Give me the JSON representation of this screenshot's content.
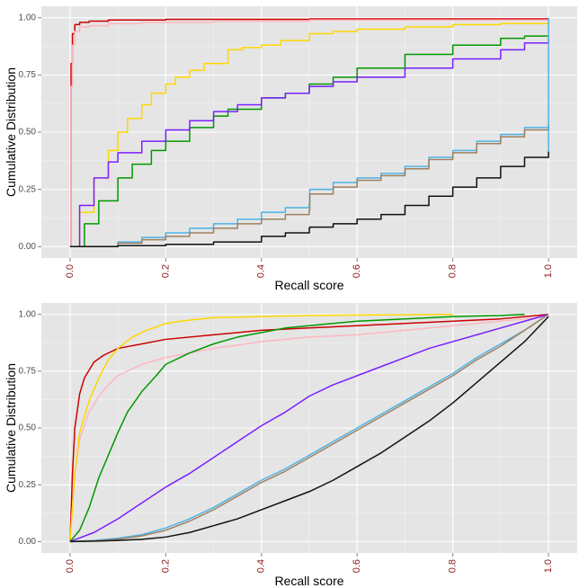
{
  "chart_data": [
    {
      "type": "line",
      "step": true,
      "xlabel": "Recall score",
      "ylabel": "Cumulative Distribution",
      "xlim": [
        -0.06,
        1.06
      ],
      "ylim": [
        -0.05,
        1.05
      ],
      "x_ticks": [
        0.0,
        0.2,
        0.4,
        0.6,
        0.8,
        1.0
      ],
      "x_tick_labels": [
        "0.0",
        "0.2",
        "0.4",
        "0.6",
        "0.8",
        "1.0"
      ],
      "y_ticks": [
        0.0,
        0.25,
        0.5,
        0.75,
        1.0
      ],
      "y_tick_labels": [
        "0.00",
        "0.25",
        "0.50",
        "0.75",
        "1.00"
      ],
      "series": [
        {
          "name": "red",
          "color": "#cc0000",
          "x": [
            0,
            0.002,
            0.005,
            0.01,
            0.02,
            0.04,
            0.08,
            0.2,
            0.5,
            1.0
          ],
          "y": [
            0,
            0.8,
            0.93,
            0.97,
            0.98,
            0.985,
            0.99,
            0.993,
            0.995,
            0.998
          ]
        },
        {
          "name": "pink",
          "color": "#ffb6c1",
          "x": [
            0,
            0.002,
            0.005,
            0.01,
            0.02,
            0.04,
            0.08,
            0.15,
            0.3,
            0.5,
            1.0
          ],
          "y": [
            0,
            0.7,
            0.88,
            0.94,
            0.96,
            0.965,
            0.975,
            0.98,
            0.985,
            0.99,
            0.995
          ]
        },
        {
          "name": "gold",
          "color": "#ffd700",
          "x": [
            0,
            0.02,
            0.05,
            0.08,
            0.1,
            0.12,
            0.15,
            0.17,
            0.2,
            0.22,
            0.25,
            0.28,
            0.33,
            0.36,
            0.4,
            0.44,
            0.5,
            0.55,
            0.6,
            0.7,
            0.8,
            0.9,
            1.0
          ],
          "y": [
            0,
            0.15,
            0.3,
            0.42,
            0.5,
            0.56,
            0.62,
            0.67,
            0.71,
            0.74,
            0.77,
            0.8,
            0.86,
            0.87,
            0.88,
            0.9,
            0.93,
            0.94,
            0.95,
            0.96,
            0.97,
            0.975,
            0.98
          ]
        },
        {
          "name": "green",
          "color": "#009900",
          "x": [
            0,
            0.03,
            0.06,
            0.1,
            0.13,
            0.17,
            0.2,
            0.25,
            0.3,
            0.33,
            0.4,
            0.45,
            0.5,
            0.55,
            0.6,
            0.7,
            0.8,
            0.9,
            0.95,
            1.0
          ],
          "y": [
            0,
            0.1,
            0.2,
            0.3,
            0.36,
            0.42,
            0.46,
            0.52,
            0.57,
            0.6,
            0.65,
            0.67,
            0.71,
            0.74,
            0.78,
            0.84,
            0.88,
            0.91,
            0.92,
            0.925
          ]
        },
        {
          "name": "purple",
          "color": "#7a1fff",
          "x": [
            0,
            0.02,
            0.05,
            0.08,
            0.1,
            0.15,
            0.2,
            0.25,
            0.3,
            0.35,
            0.4,
            0.45,
            0.5,
            0.55,
            0.6,
            0.7,
            0.8,
            0.9,
            0.95,
            1.0
          ],
          "y": [
            0,
            0.18,
            0.3,
            0.37,
            0.41,
            0.46,
            0.51,
            0.55,
            0.59,
            0.62,
            0.65,
            0.67,
            0.7,
            0.72,
            0.74,
            0.78,
            0.82,
            0.86,
            0.89,
            0.91
          ]
        },
        {
          "name": "skyblue",
          "color": "#4db3e6",
          "x": [
            0,
            0.1,
            0.15,
            0.2,
            0.25,
            0.3,
            0.35,
            0.4,
            0.45,
            0.5,
            0.501,
            0.55,
            0.6,
            0.65,
            0.7,
            0.75,
            0.8,
            0.85,
            0.9,
            0.95,
            1.0
          ],
          "y": [
            0,
            0.02,
            0.04,
            0.06,
            0.08,
            0.1,
            0.12,
            0.15,
            0.17,
            0.19,
            0.25,
            0.28,
            0.3,
            0.32,
            0.35,
            0.39,
            0.42,
            0.46,
            0.49,
            0.52,
            0.535
          ]
        },
        {
          "name": "tan",
          "color": "#a08060",
          "x": [
            0,
            0.1,
            0.15,
            0.2,
            0.25,
            0.3,
            0.35,
            0.4,
            0.45,
            0.5,
            0.501,
            0.55,
            0.6,
            0.65,
            0.7,
            0.75,
            0.8,
            0.85,
            0.9,
            0.95,
            1.0
          ],
          "y": [
            0,
            0.015,
            0.03,
            0.045,
            0.06,
            0.08,
            0.1,
            0.12,
            0.14,
            0.16,
            0.23,
            0.26,
            0.29,
            0.31,
            0.34,
            0.38,
            0.41,
            0.45,
            0.48,
            0.51,
            0.53
          ]
        },
        {
          "name": "black",
          "color": "#111111",
          "x": [
            0,
            0.1,
            0.2,
            0.3,
            0.4,
            0.45,
            0.5,
            0.501,
            0.55,
            0.6,
            0.65,
            0.7,
            0.75,
            0.8,
            0.85,
            0.9,
            0.95,
            1.0
          ],
          "y": [
            0,
            0.004,
            0.01,
            0.02,
            0.045,
            0.06,
            0.08,
            0.085,
            0.1,
            0.12,
            0.14,
            0.18,
            0.22,
            0.26,
            0.3,
            0.35,
            0.39,
            0.415
          ]
        }
      ],
      "vertical_end_segment": {
        "x": 1.0,
        "series_range": [
          0.415,
          1.0
        ]
      }
    },
    {
      "type": "line",
      "step": false,
      "xlabel": "Recall score",
      "ylabel": "Cumulative Distribution",
      "xlim": [
        -0.06,
        1.06
      ],
      "ylim": [
        -0.05,
        1.05
      ],
      "x_ticks": [
        0.0,
        0.2,
        0.4,
        0.6,
        0.8,
        1.0
      ],
      "x_tick_labels": [
        "0.0",
        "0.2",
        "0.4",
        "0.6",
        "0.8",
        "1.0"
      ],
      "y_ticks": [
        0.0,
        0.25,
        0.5,
        0.75,
        1.0
      ],
      "y_tick_labels": [
        "0.00",
        "0.25",
        "0.50",
        "0.75",
        "1.00"
      ],
      "series": [
        {
          "name": "red",
          "color": "#cc0000",
          "x": [
            0,
            0.005,
            0.01,
            0.02,
            0.03,
            0.05,
            0.07,
            0.1,
            0.15,
            0.2,
            0.3,
            0.4,
            0.5,
            0.6,
            0.7,
            0.8,
            0.9,
            1.0
          ],
          "y": [
            0,
            0.3,
            0.5,
            0.65,
            0.72,
            0.79,
            0.82,
            0.85,
            0.87,
            0.89,
            0.91,
            0.93,
            0.94,
            0.95,
            0.96,
            0.97,
            0.98,
            1.0
          ]
        },
        {
          "name": "pink",
          "color": "#ffb6c1",
          "x": [
            0,
            0.01,
            0.02,
            0.04,
            0.06,
            0.08,
            0.1,
            0.15,
            0.2,
            0.25,
            0.3,
            0.4,
            0.5,
            0.6,
            0.7,
            0.8,
            0.9,
            1.0
          ],
          "y": [
            0,
            0.3,
            0.45,
            0.57,
            0.64,
            0.69,
            0.73,
            0.78,
            0.81,
            0.83,
            0.85,
            0.88,
            0.9,
            0.91,
            0.93,
            0.95,
            0.97,
            0.99
          ]
        },
        {
          "name": "gold",
          "color": "#ffd700",
          "x": [
            0,
            0.01,
            0.02,
            0.04,
            0.06,
            0.08,
            0.1,
            0.13,
            0.16,
            0.2,
            0.25,
            0.3,
            0.4,
            0.5,
            0.6,
            0.7,
            0.8
          ],
          "y": [
            0,
            0.3,
            0.48,
            0.62,
            0.72,
            0.8,
            0.85,
            0.9,
            0.93,
            0.96,
            0.975,
            0.985,
            0.99,
            0.995,
            0.997,
            0.998,
            1.0
          ]
        },
        {
          "name": "green",
          "color": "#009900",
          "x": [
            0,
            0.02,
            0.04,
            0.06,
            0.08,
            0.1,
            0.12,
            0.15,
            0.18,
            0.2,
            0.25,
            0.3,
            0.35,
            0.4,
            0.45,
            0.5,
            0.6,
            0.7,
            0.8,
            0.9,
            0.95
          ],
          "y": [
            0,
            0.05,
            0.15,
            0.28,
            0.38,
            0.48,
            0.57,
            0.66,
            0.73,
            0.78,
            0.83,
            0.87,
            0.9,
            0.92,
            0.94,
            0.95,
            0.97,
            0.98,
            0.99,
            0.995,
            1.0
          ]
        },
        {
          "name": "purple",
          "color": "#7a1fff",
          "x": [
            0,
            0.05,
            0.1,
            0.15,
            0.2,
            0.25,
            0.3,
            0.35,
            0.4,
            0.45,
            0.5,
            0.55,
            0.6,
            0.65,
            0.7,
            0.75,
            0.8,
            0.85,
            0.9,
            0.95,
            1.0
          ],
          "y": [
            0,
            0.04,
            0.1,
            0.17,
            0.24,
            0.3,
            0.37,
            0.44,
            0.51,
            0.57,
            0.64,
            0.69,
            0.73,
            0.77,
            0.81,
            0.85,
            0.88,
            0.91,
            0.94,
            0.97,
            1.0
          ]
        },
        {
          "name": "skyblue",
          "color": "#4db3e6",
          "x": [
            0,
            0.05,
            0.1,
            0.15,
            0.2,
            0.25,
            0.3,
            0.35,
            0.4,
            0.45,
            0.5,
            0.55,
            0.6,
            0.65,
            0.7,
            0.75,
            0.8,
            0.85,
            0.9,
            0.95,
            1.0
          ],
          "y": [
            0,
            0.005,
            0.015,
            0.03,
            0.06,
            0.1,
            0.15,
            0.21,
            0.27,
            0.32,
            0.38,
            0.44,
            0.5,
            0.56,
            0.62,
            0.68,
            0.74,
            0.81,
            0.87,
            0.93,
            1.0
          ]
        },
        {
          "name": "tan",
          "color": "#a08060",
          "x": [
            0,
            0.05,
            0.1,
            0.15,
            0.2,
            0.25,
            0.3,
            0.35,
            0.4,
            0.45,
            0.5,
            0.55,
            0.6,
            0.65,
            0.7,
            0.75,
            0.8,
            0.85,
            0.9,
            0.95,
            1.0
          ],
          "y": [
            0,
            0.003,
            0.01,
            0.025,
            0.05,
            0.09,
            0.14,
            0.2,
            0.26,
            0.31,
            0.37,
            0.43,
            0.49,
            0.55,
            0.61,
            0.67,
            0.73,
            0.8,
            0.86,
            0.93,
            1.0
          ]
        },
        {
          "name": "black",
          "color": "#111111",
          "x": [
            0,
            0.05,
            0.1,
            0.15,
            0.2,
            0.25,
            0.3,
            0.35,
            0.4,
            0.45,
            0.5,
            0.55,
            0.6,
            0.65,
            0.7,
            0.75,
            0.8,
            0.85,
            0.9,
            0.95,
            1.0
          ],
          "y": [
            0,
            0.002,
            0.005,
            0.01,
            0.02,
            0.04,
            0.07,
            0.1,
            0.14,
            0.18,
            0.22,
            0.27,
            0.33,
            0.39,
            0.46,
            0.53,
            0.61,
            0.7,
            0.79,
            0.88,
            0.99
          ]
        }
      ]
    }
  ]
}
